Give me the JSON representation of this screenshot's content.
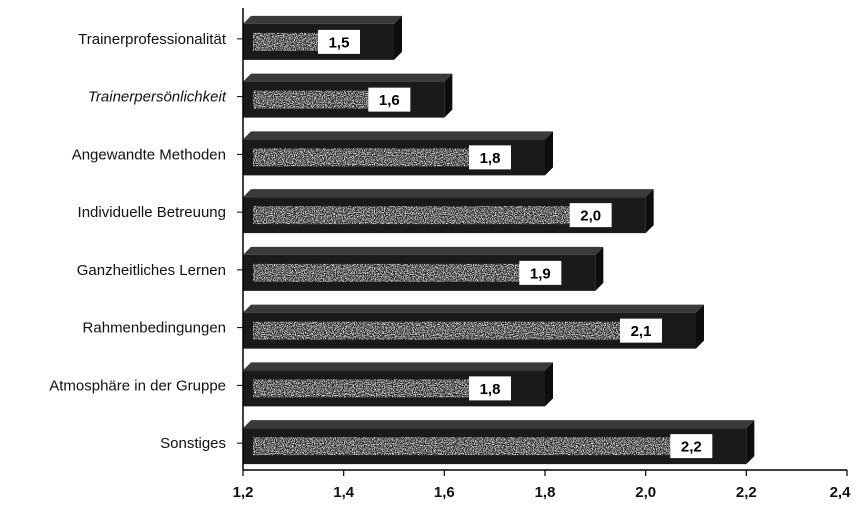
{
  "chart_data": {
    "type": "bar",
    "orientation": "horizontal",
    "categories": [
      "Trainerprofessionalität",
      "Trainerpersönlichkeit",
      "Angewandte Methoden",
      "Individuelle Betreuung",
      "Ganzheitliches Lernen",
      "Rahmenbedingungen",
      "Atmosphäre in der Gruppe",
      "Sonstiges"
    ],
    "italic_categories": [
      "Trainerpersönlichkeit"
    ],
    "values": [
      1.5,
      1.6,
      1.8,
      2.0,
      1.9,
      2.1,
      1.8,
      2.2
    ],
    "value_labels": [
      "1,5",
      "1,6",
      "1,8",
      "2,0",
      "1,9",
      "2,1",
      "1,8",
      "2,2"
    ],
    "xlim": [
      1.2,
      2.4
    ],
    "xticks": [
      1.2,
      1.4,
      1.6,
      1.8,
      2.0,
      2.2,
      2.4
    ],
    "xtick_labels": [
      "1,2",
      "1,4",
      "1,6",
      "1,8",
      "2,0",
      "2,2",
      "2,4"
    ],
    "title": "",
    "xlabel": "",
    "ylabel": "",
    "grid": false,
    "legend": "none",
    "colors": {
      "bar_body": "#1a1a1a",
      "bar_speckle": "#cfcfcf",
      "value_box": "#ffffff",
      "axis": "#000000"
    }
  }
}
